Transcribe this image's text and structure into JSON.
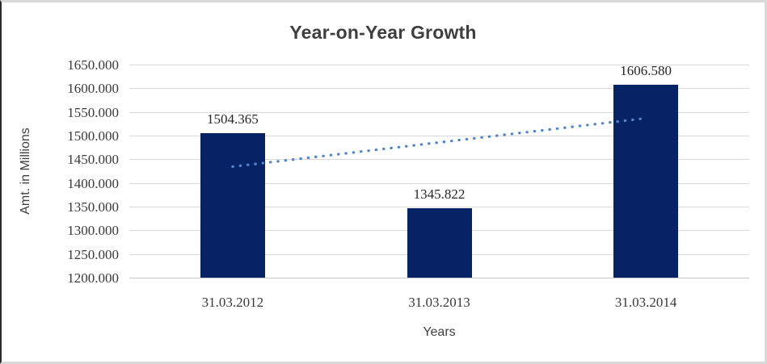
{
  "chart_data": {
    "type": "bar",
    "title": "Year-on-Year Growth",
    "xlabel": "Years",
    "ylabel": "Amt. in Millions",
    "categories": [
      "31.03.2012",
      "31.03.2013",
      "31.03.2014"
    ],
    "series": [
      {
        "name": "Amt. in Millions",
        "type": "column",
        "values": [
          1504.365,
          1345.822,
          1606.58
        ]
      }
    ],
    "data_labels": [
      "1504.365",
      "1345.822",
      "1606.580"
    ],
    "ylim": [
      1200,
      1650
    ],
    "ytick_step": 50,
    "yticks": [
      "1650.000",
      "1600.000",
      "1550.000",
      "1500.000",
      "1450.000",
      "1400.000",
      "1350.000",
      "1300.000",
      "1250.000",
      "1200.000"
    ],
    "grid": true,
    "legend": "none",
    "trendline": {
      "type": "linear",
      "style": "dotted",
      "value_at_first_bar": 1434.5,
      "value_at_last_bar": 1536.7
    }
  },
  "colors": {
    "bar": "#062365",
    "trendline": "#4f86c9",
    "gridline": "#d9d9d9",
    "axis_line": "#c6c6c6",
    "title_text": "#3f3f3f",
    "tick_text": "#3a3a3a",
    "frame_border": "#d9d9d9"
  }
}
